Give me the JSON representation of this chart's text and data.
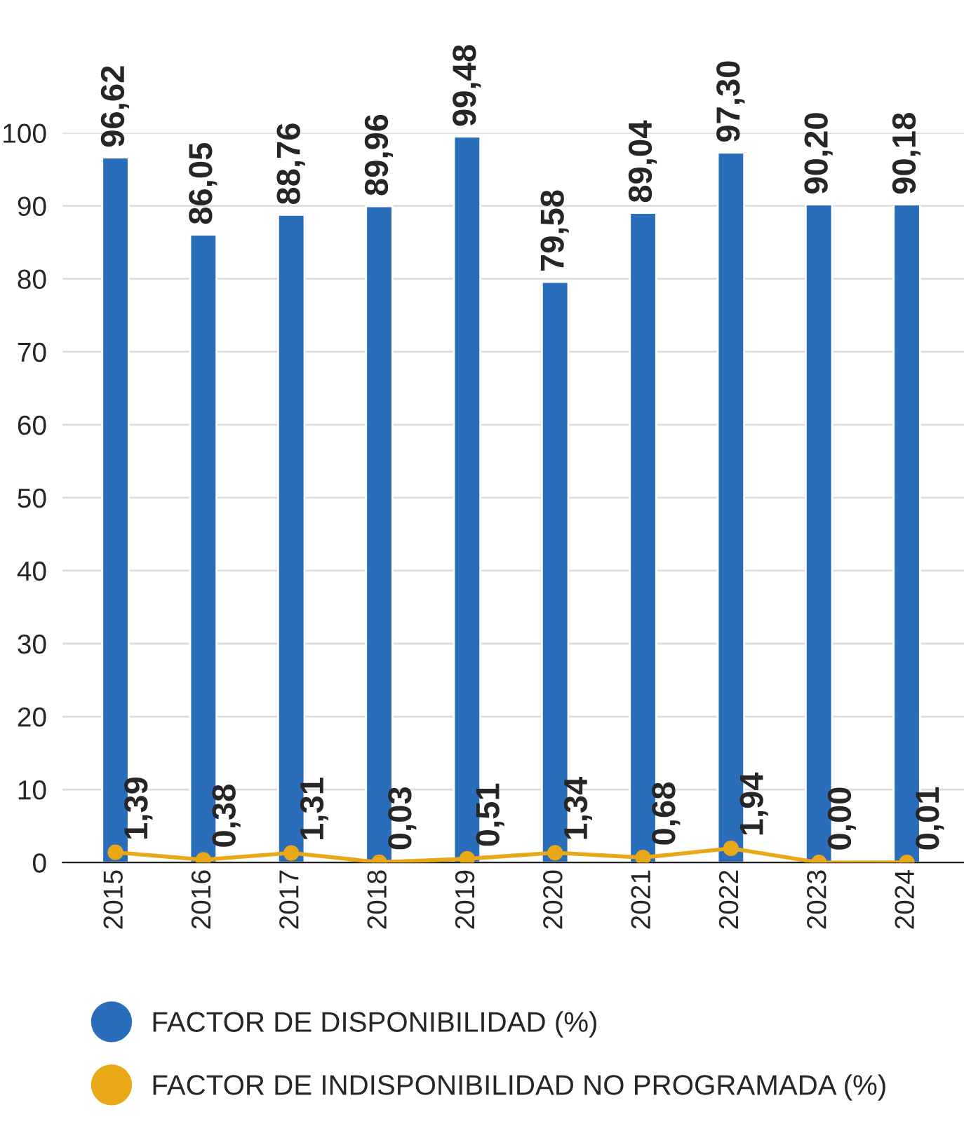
{
  "chart_data": {
    "type": "bar",
    "categories": [
      "2015",
      "2016",
      "2017",
      "2018",
      "2019",
      "2020",
      "2021",
      "2022",
      "2023",
      "2024"
    ],
    "series": [
      {
        "name": "FACTOR DE DISPONIBILIDAD (%)",
        "color": "#2a6ebb",
        "values": [
          96.62,
          86.05,
          88.76,
          89.96,
          99.48,
          79.58,
          89.04,
          97.3,
          90.2,
          90.18
        ],
        "value_labels": [
          "96,62",
          "86,05",
          "88,76",
          "89,96",
          "99,48",
          "79,58",
          "89,04",
          "97,30",
          "90,20",
          "90,18"
        ]
      },
      {
        "name": "FACTOR DE INDISPONIBILIDAD NO PROGRAMADA (%)",
        "type": "line",
        "color": "#e8a817",
        "marker": "circle",
        "values": [
          1.39,
          0.38,
          1.31,
          0.03,
          0.51,
          1.34,
          0.68,
          1.94,
          0.0,
          0.01
        ],
        "value_labels": [
          "1,39",
          "0,38",
          "1,31",
          "0,03",
          "0,51",
          "1,34",
          "0,68",
          "1,94",
          "0,00",
          "0,01"
        ]
      }
    ],
    "ylim": [
      0,
      100
    ],
    "yticks": [
      0,
      10,
      20,
      30,
      40,
      50,
      60,
      70,
      80,
      90,
      100
    ],
    "grid": "y",
    "legend": "bottom left"
  }
}
